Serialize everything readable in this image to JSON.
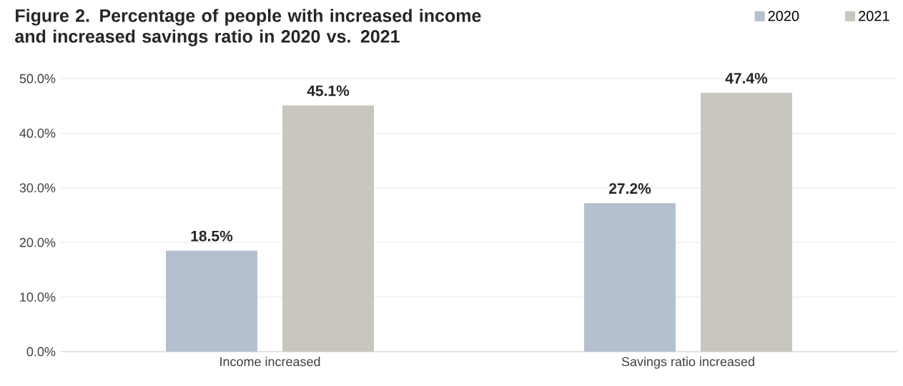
{
  "chart_data": {
    "type": "bar",
    "title": "Figure 2. Percentage of people with increased income and increased savings ratio in 2020 vs. 2021",
    "categories": [
      "Income increased",
      "Savings ratio increased"
    ],
    "series": [
      {
        "name": "2020",
        "color": "#b4c0ce",
        "values": [
          18.5,
          27.2
        ],
        "value_labels": [
          "18.5%",
          "27.2%"
        ]
      },
      {
        "name": "2021",
        "color": "#c9c6bf",
        "values": [
          45.1,
          47.4
        ],
        "value_labels": [
          "45.1%",
          "47.4%"
        ]
      }
    ],
    "ylim": [
      0,
      50
    ],
    "yticks": [
      {
        "value": 0,
        "label": "0.0%"
      },
      {
        "value": 10,
        "label": "10.0%"
      },
      {
        "value": 20,
        "label": "20.0%"
      },
      {
        "value": 30,
        "label": "30.0%"
      },
      {
        "value": 40,
        "label": "40.0%"
      },
      {
        "value": 50,
        "label": "50.0%"
      }
    ],
    "grid": "y",
    "legend": "top right"
  }
}
